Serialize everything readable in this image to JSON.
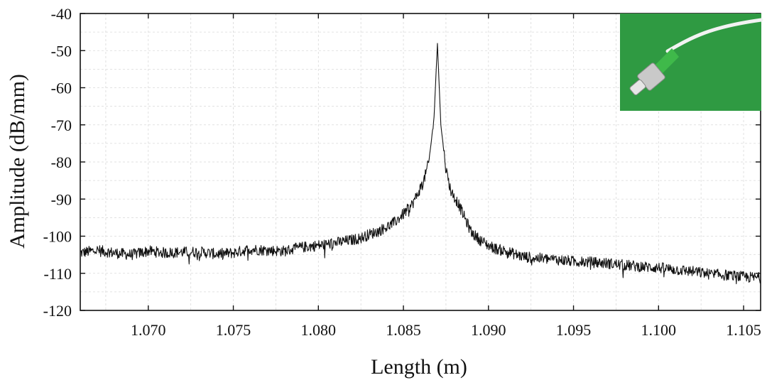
{
  "chart_data": {
    "type": "line",
    "title": "",
    "xlabel": "Length (m)",
    "ylabel": "Amplitude (dB/mm)",
    "xlim": [
      1.066,
      1.106
    ],
    "ylim": [
      -120,
      -40
    ],
    "x_ticks": [
      1.07,
      1.075,
      1.08,
      1.085,
      1.09,
      1.095,
      1.1,
      1.105
    ],
    "x_tick_labels": [
      "1.070",
      "1.075",
      "1.080",
      "1.085",
      "1.090",
      "1.095",
      "1.100",
      "1.105"
    ],
    "y_ticks": [
      -120,
      -110,
      -100,
      -90,
      -80,
      -70,
      -60,
      -50,
      -40
    ],
    "y_tick_labels": [
      "-120",
      "-110",
      "-100",
      "-90",
      "-80",
      "-70",
      "-60",
      "-50",
      "-40"
    ],
    "grid": true,
    "grid_style": "dashed minor and major",
    "series": [
      {
        "color": "#111111",
        "x": [
          1.066,
          1.067,
          1.068,
          1.069,
          1.07,
          1.071,
          1.072,
          1.073,
          1.074,
          1.075,
          1.076,
          1.077,
          1.078,
          1.079,
          1.08,
          1.081,
          1.082,
          1.0825,
          1.083,
          1.0835,
          1.084,
          1.0845,
          1.085,
          1.0855,
          1.0858,
          1.0862,
          1.0865,
          1.0868,
          1.087,
          1.0872,
          1.0875,
          1.0878,
          1.0882,
          1.0886,
          1.089,
          1.0895,
          1.09,
          1.0905,
          1.091,
          1.092,
          1.093,
          1.094,
          1.095,
          1.096,
          1.097,
          1.098,
          1.099,
          1.1,
          1.101,
          1.102,
          1.103,
          1.104,
          1.105,
          1.106
        ],
        "y": [
          -104.5,
          -103.8,
          -104.5,
          -105,
          -104,
          -104.5,
          -104.3,
          -104.2,
          -104.8,
          -104.5,
          -103.5,
          -103.8,
          -104,
          -103,
          -102.5,
          -101.8,
          -101,
          -100.5,
          -99.5,
          -98.7,
          -97.6,
          -96.2,
          -94,
          -91.5,
          -89,
          -85,
          -80,
          -68,
          -48,
          -70,
          -82,
          -88,
          -91,
          -95,
          -99,
          -101,
          -102.5,
          -103.5,
          -104,
          -105.5,
          -106,
          -106.3,
          -106.8,
          -107,
          -107.3,
          -107.8,
          -108.2,
          -108.5,
          -109,
          -109.5,
          -110.2,
          -110.5,
          -111,
          -111.2
        ],
        "noise_amplitude_db": 1.5
      }
    ]
  },
  "inset_photo": {
    "description_icon": "fiber-connector-photo-icon",
    "background_color": "#2f9a42",
    "connector_color": "#c9c9c9",
    "boot_color": "#3fb94a",
    "fiber_color": "#f2f2f2"
  }
}
